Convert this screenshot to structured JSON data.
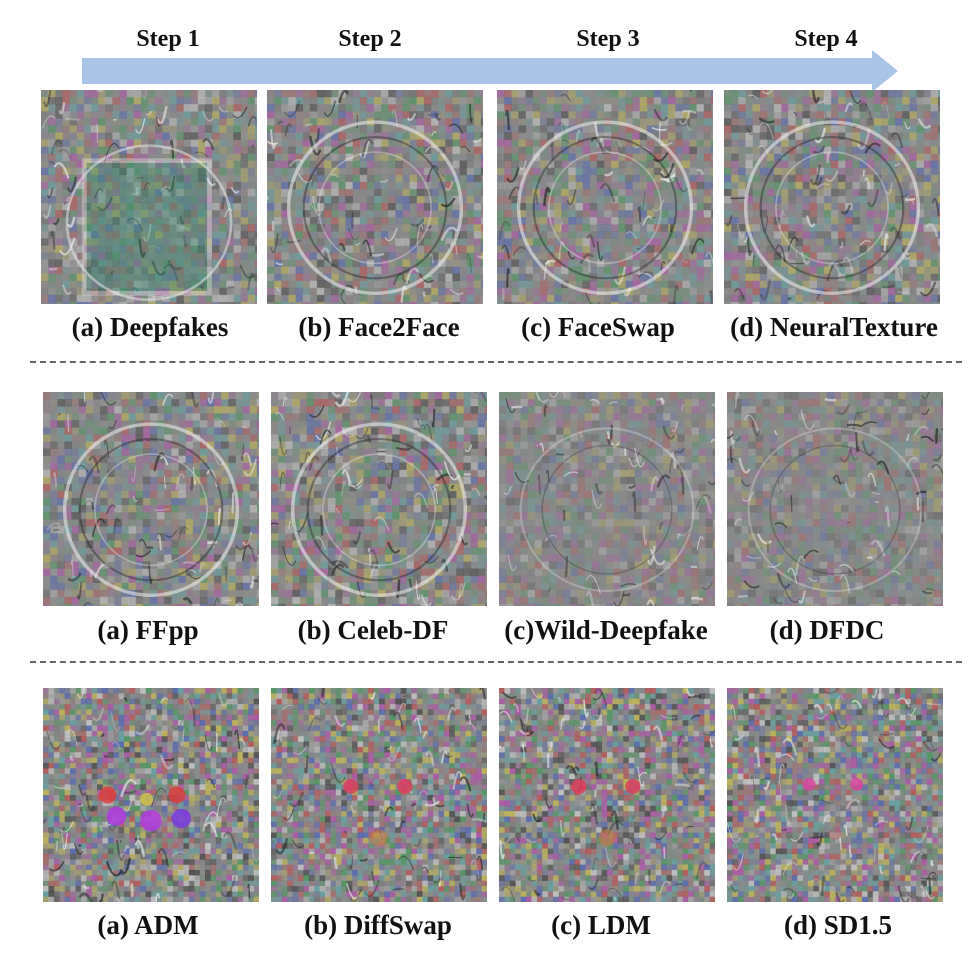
{
  "steps": [
    "Step 1",
    "Step 2",
    "Step 3",
    "Step 4"
  ],
  "rows": [
    {
      "captions": [
        "(a) Deepfakes",
        "(b) Face2Face",
        "(c) FaceSwap",
        "(d) NeuralTexture"
      ]
    },
    {
      "captions": [
        "(a) FFpp",
        "(b) Celeb-DF",
        "(c)Wild-Deepfake",
        "(d) DFDC"
      ]
    },
    {
      "captions": [
        "(a) ADM",
        "(b) DiffSwap",
        "(c) LDM",
        "(d) SD1.5"
      ]
    }
  ],
  "colors": {
    "arrow": "#a9c4e6",
    "divider": "#666666",
    "noise_gray": "#8a8a8a"
  }
}
